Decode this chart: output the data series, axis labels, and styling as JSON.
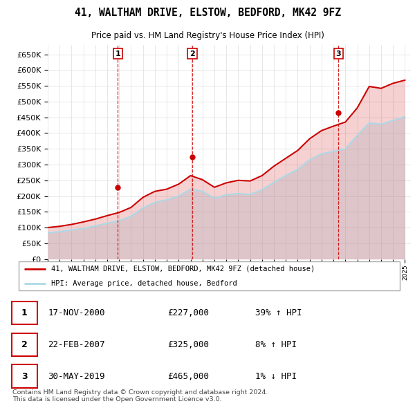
{
  "title": "41, WALTHAM DRIVE, ELSTOW, BEDFORD, MK42 9FZ",
  "subtitle": "Price paid vs. HM Land Registry's House Price Index (HPI)",
  "ylim": [
    0,
    680000
  ],
  "yticks": [
    0,
    50000,
    100000,
    150000,
    200000,
    250000,
    300000,
    350000,
    400000,
    450000,
    500000,
    550000,
    600000,
    650000
  ],
  "hpi_color": "#add8e6",
  "price_color": "#cc0000",
  "vline_color": "#cc0000",
  "grid_color": "#dddddd",
  "sale_dates": [
    2000.88,
    2007.14,
    2019.41
  ],
  "sale_prices": [
    227000,
    325000,
    465000
  ],
  "sale_labels": [
    "1",
    "2",
    "3"
  ],
  "legend_label_price": "41, WALTHAM DRIVE, ELSTOW, BEDFORD, MK42 9FZ (detached house)",
  "legend_label_hpi": "HPI: Average price, detached house, Bedford",
  "table_rows": [
    {
      "num": "1",
      "date": "17-NOV-2000",
      "price": "£227,000",
      "hpi": "39% ↑ HPI"
    },
    {
      "num": "2",
      "date": "22-FEB-2007",
      "price": "£325,000",
      "hpi": "8% ↑ HPI"
    },
    {
      "num": "3",
      "date": "30-MAY-2019",
      "price": "£465,000",
      "hpi": "1% ↓ HPI"
    }
  ],
  "footnote": "Contains HM Land Registry data © Crown copyright and database right 2024.\nThis data is licensed under the Open Government Licence v3.0.",
  "hpi_data_x": [
    1995,
    1996,
    1997,
    1998,
    1999,
    2000,
    2001,
    2002,
    2003,
    2004,
    2005,
    2006,
    2007,
    2008,
    2009,
    2010,
    2011,
    2012,
    2013,
    2014,
    2015,
    2016,
    2017,
    2018,
    2019,
    2020,
    2021,
    2022,
    2023,
    2024,
    2025
  ],
  "hpi_data_y": [
    83000,
    87000,
    92000,
    97000,
    105000,
    114000,
    121000,
    136000,
    162000,
    180000,
    188000,
    200000,
    222000,
    215000,
    193000,
    204000,
    208000,
    205000,
    220000,
    244000,
    265000,
    285000,
    315000,
    334000,
    342000,
    350000,
    393000,
    432000,
    428000,
    440000,
    452000
  ],
  "price_data_x": [
    1995,
    1996,
    1997,
    1998,
    1999,
    2000,
    2001,
    2002,
    2003,
    2004,
    2005,
    2006,
    2007,
    2008,
    2009,
    2010,
    2011,
    2012,
    2013,
    2014,
    2015,
    2016,
    2017,
    2018,
    2019,
    2020,
    2021,
    2022,
    2023,
    2024,
    2025
  ],
  "price_data_y": [
    100000,
    104000,
    110000,
    118000,
    127000,
    138000,
    148000,
    164000,
    196000,
    215000,
    222000,
    238000,
    265000,
    252000,
    228000,
    242000,
    250000,
    248000,
    265000,
    295000,
    320000,
    345000,
    382000,
    408000,
    422000,
    435000,
    480000,
    548000,
    542000,
    558000,
    568000
  ]
}
